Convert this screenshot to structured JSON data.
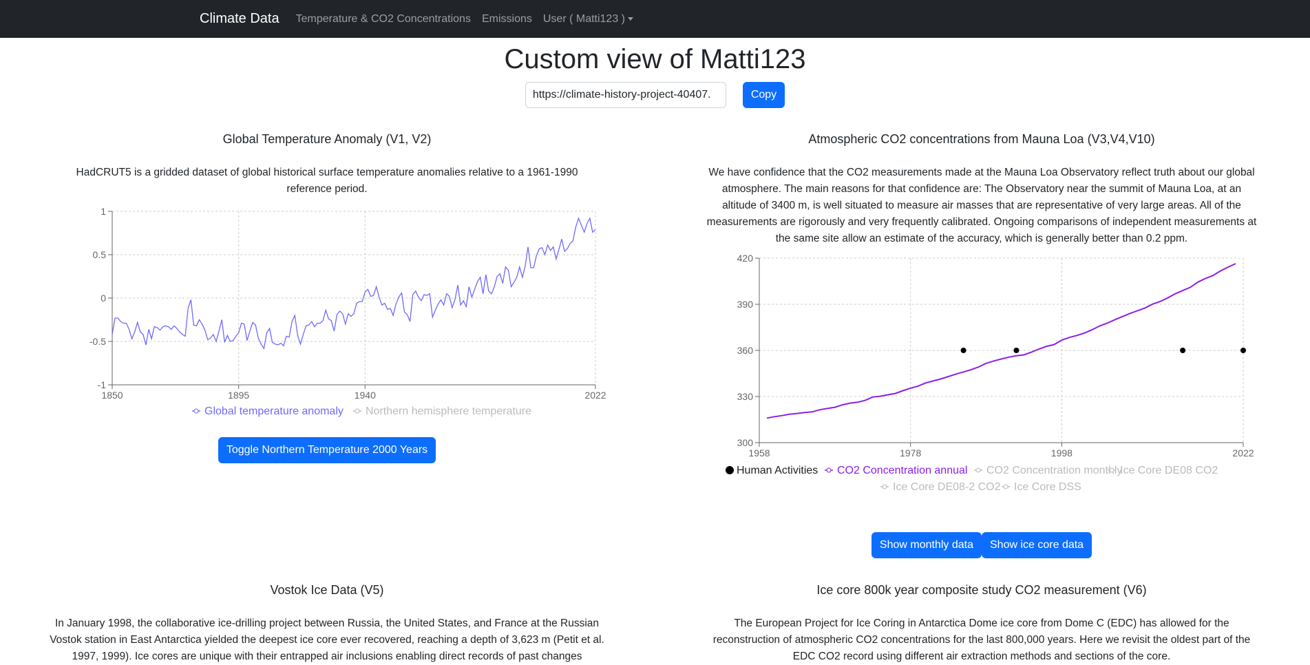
{
  "nav": {
    "brand": "Climate Data",
    "link1": "Temperature & CO2 Concentrations",
    "link2": "Emissions",
    "user": "User ( Matti123 )"
  },
  "page": {
    "title": "Custom view of Matti123",
    "url_value": "https://climate-history-project-40407.",
    "copy_label": "Copy"
  },
  "temp": {
    "title": "Global Temperature Anomaly (V1, V2)",
    "desc": "HadCRUT5 is a gridded dataset of global historical surface temperature anomalies relative to a 1961-1990 reference period.",
    "legend_global": "Global temperature anomaly",
    "legend_north": "Northern hemisphere temperature",
    "toggle_label": "Toggle Northern Temperature 2000 Years",
    "color_global": "#6f6af8",
    "color_north": "#bbbbbb"
  },
  "co2": {
    "title": "Atmospheric CO2 concentrations from Mauna Loa (V3,V4,V10)",
    "desc": "We have confidence that the CO2 measurements made at the Mauna Loa Observatory reflect truth about our global atmosphere. The main reasons for that confidence are: The Observatory near the summit of Mauna Loa, at an altitude of 3400 m, is well situated to measure air masses that are representative of very large areas. All of the measurements are rigorously and very frequently calibrated. Ongoing comparisons of independent measurements at the same site allow an estimate of the accuracy, which is generally better than 0.2 ppm.",
    "legend_human": "Human Activities",
    "legend_annual": "CO2 Concentration annual",
    "legend_monthly": "CO2 Concentration monthly",
    "legend_de08": "Ice Core DE08 CO2",
    "legend_de08_2": "Ice Core DE08-2 CO2",
    "legend_dss": "Ice Core DSS",
    "btn_monthly": "Show monthly data",
    "btn_icecore": "Show ice core data",
    "color_annual": "#8a1ee8",
    "color_human": "#000000"
  },
  "vostok": {
    "title": "Vostok Ice Data (V5)",
    "desc": "In January 1998, the collaborative ice-drilling project between Russia, the United States, and France at the Russian Vostok station in East Antarctica yielded the deepest ice core ever recovered, reaching a depth of 3,623 m (Petit et al. 1997, 1999). Ice cores are unique with their entrapped air inclusions enabling direct records of past changes"
  },
  "icecore": {
    "title": "Ice core 800k year composite study CO2 measurement (V6)",
    "desc": "The European Project for Ice Coring in Antarctica Dome ice core from Dome C (EDC) has allowed for the reconstruction of atmospheric CO2 concentrations for the last 800,000 years. Here we revisit the oldest part of the EDC CO2 record using different air extraction methods and sections of the core."
  },
  "chart_data": [
    {
      "type": "line",
      "xlim": [
        1850,
        2022
      ],
      "ylim": [
        -1,
        1
      ],
      "x_ticks": [
        "1850",
        "1895",
        "1940",
        "2022"
      ],
      "y_ticks": [
        "1",
        "0.5",
        "0",
        "-0.5",
        "-1"
      ],
      "grid": true,
      "legend": "bottom",
      "series": [
        {
          "name": "Global temperature anomaly",
          "x": [
            1850,
            1851,
            1852,
            1853,
            1854,
            1855,
            1856,
            1857,
            1858,
            1859,
            1860,
            1861,
            1862,
            1863,
            1864,
            1865,
            1866,
            1867,
            1868,
            1869,
            1870,
            1871,
            1872,
            1873,
            1874,
            1875,
            1876,
            1877,
            1878,
            1879,
            1880,
            1881,
            1882,
            1883,
            1884,
            1885,
            1886,
            1887,
            1888,
            1889,
            1890,
            1891,
            1892,
            1893,
            1894,
            1895,
            1896,
            1897,
            1898,
            1899,
            1900,
            1901,
            1902,
            1903,
            1904,
            1905,
            1906,
            1907,
            1908,
            1909,
            1910,
            1911,
            1912,
            1913,
            1914,
            1915,
            1916,
            1917,
            1918,
            1919,
            1920,
            1921,
            1922,
            1923,
            1924,
            1925,
            1926,
            1927,
            1928,
            1929,
            1930,
            1931,
            1932,
            1933,
            1934,
            1935,
            1936,
            1937,
            1938,
            1939,
            1940,
            1941,
            1942,
            1943,
            1944,
            1945,
            1946,
            1947,
            1948,
            1949,
            1950,
            1951,
            1952,
            1953,
            1954,
            1955,
            1956,
            1957,
            1958,
            1959,
            1960,
            1961,
            1962,
            1963,
            1964,
            1965,
            1966,
            1967,
            1968,
            1969,
            1970,
            1971,
            1972,
            1973,
            1974,
            1975,
            1976,
            1977,
            1978,
            1979,
            1980,
            1981,
            1982,
            1983,
            1984,
            1985,
            1986,
            1987,
            1988,
            1989,
            1990,
            1991,
            1992,
            1993,
            1994,
            1995,
            1996,
            1997,
            1998,
            1999,
            2000,
            2001,
            2002,
            2003,
            2004,
            2005,
            2006,
            2007,
            2008,
            2009,
            2010,
            2011,
            2012,
            2013,
            2014,
            2015,
            2016,
            2017,
            2018,
            2019,
            2020,
            2021,
            2022
          ],
          "values": [
            -0.42,
            -0.23,
            -0.23,
            -0.27,
            -0.29,
            -0.29,
            -0.36,
            -0.47,
            -0.39,
            -0.28,
            -0.39,
            -0.42,
            -0.54,
            -0.36,
            -0.47,
            -0.33,
            -0.34,
            -0.37,
            -0.33,
            -0.32,
            -0.33,
            -0.36,
            -0.32,
            -0.35,
            -0.39,
            -0.42,
            -0.44,
            -0.12,
            -0.02,
            -0.31,
            -0.32,
            -0.25,
            -0.3,
            -0.37,
            -0.48,
            -0.46,
            -0.42,
            -0.5,
            -0.38,
            -0.25,
            -0.51,
            -0.43,
            -0.5,
            -0.49,
            -0.44,
            -0.4,
            -0.29,
            -0.3,
            -0.49,
            -0.38,
            -0.28,
            -0.31,
            -0.46,
            -0.53,
            -0.58,
            -0.4,
            -0.35,
            -0.51,
            -0.53,
            -0.54,
            -0.52,
            -0.55,
            -0.44,
            -0.45,
            -0.27,
            -0.2,
            -0.43,
            -0.53,
            -0.42,
            -0.32,
            -0.31,
            -0.27,
            -0.33,
            -0.29,
            -0.29,
            -0.26,
            -0.14,
            -0.24,
            -0.26,
            -0.38,
            -0.19,
            -0.15,
            -0.18,
            -0.3,
            -0.18,
            -0.21,
            -0.18,
            -0.06,
            -0.04,
            -0.04,
            0.07,
            0.1,
            0.02,
            0.03,
            0.13,
            0.01,
            -0.08,
            -0.06,
            -0.13,
            -0.12,
            -0.2,
            -0.07,
            0.01,
            0.06,
            -0.16,
            -0.19,
            -0.27,
            0.04,
            0.08,
            0.01,
            -0.03,
            0.04,
            0.03,
            0.05,
            -0.22,
            -0.14,
            -0.07,
            -0.02,
            -0.08,
            0.05,
            0.02,
            -0.11,
            -0.02,
            0.15,
            -0.08,
            -0.03,
            -0.1,
            0.13,
            0.01,
            0.1,
            0.19,
            0.24,
            0.05,
            0.27,
            0.08,
            0.05,
            0.13,
            0.25,
            0.28,
            0.17,
            0.36,
            0.32,
            0.13,
            0.18,
            0.24,
            0.36,
            0.24,
            0.37,
            0.59,
            0.35,
            0.35,
            0.49,
            0.57,
            0.58,
            0.5,
            0.61,
            0.55,
            0.59,
            0.45,
            0.56,
            0.68,
            0.54,
            0.57,
            0.63,
            0.66,
            0.82,
            0.92,
            0.84,
            0.76,
            0.86,
            0.92,
            0.76,
            0.79
          ]
        }
      ]
    },
    {
      "type": "line",
      "xlim": [
        1958,
        2022
      ],
      "ylim": [
        300,
        420
      ],
      "x_ticks": [
        "1958",
        "1978",
        "1998",
        "2022"
      ],
      "y_ticks": [
        "420",
        "390",
        "360",
        "330",
        "300"
      ],
      "grid": true,
      "legend": "bottom",
      "series": [
        {
          "name": "CO2 Concentration annual",
          "x": [
            1959,
            1960,
            1961,
            1962,
            1963,
            1964,
            1965,
            1966,
            1967,
            1968,
            1969,
            1970,
            1971,
            1972,
            1973,
            1974,
            1975,
            1976,
            1977,
            1978,
            1979,
            1980,
            1981,
            1982,
            1983,
            1984,
            1985,
            1986,
            1987,
            1988,
            1989,
            1990,
            1991,
            1992,
            1993,
            1994,
            1995,
            1996,
            1997,
            1998,
            1999,
            2000,
            2001,
            2002,
            2003,
            2004,
            2005,
            2006,
            2007,
            2008,
            2009,
            2010,
            2011,
            2012,
            2013,
            2014,
            2015,
            2016,
            2017,
            2018,
            2019,
            2020,
            2021
          ],
          "values": [
            316.0,
            316.9,
            317.6,
            318.5,
            319.0,
            319.6,
            320.0,
            321.4,
            322.2,
            323.0,
            324.6,
            325.7,
            326.3,
            327.5,
            329.7,
            330.2,
            331.1,
            332.0,
            333.8,
            335.4,
            336.8,
            338.8,
            340.1,
            341.4,
            343.0,
            344.6,
            346.0,
            347.4,
            349.2,
            351.6,
            353.1,
            354.4,
            355.6,
            356.5,
            357.1,
            358.9,
            360.9,
            362.7,
            363.8,
            366.7,
            368.4,
            369.7,
            371.3,
            373.4,
            375.9,
            377.7,
            379.9,
            382.0,
            384.0,
            385.8,
            387.6,
            390.1,
            391.8,
            394.1,
            396.8,
            398.9,
            401.0,
            404.4,
            406.8,
            408.7,
            411.7,
            414.2,
            416.4
          ]
        },
        {
          "name": "Human Activities",
          "x": [
            1985,
            1992,
            2014,
            2022
          ],
          "values": [
            360,
            360,
            360,
            360
          ]
        }
      ]
    }
  ]
}
